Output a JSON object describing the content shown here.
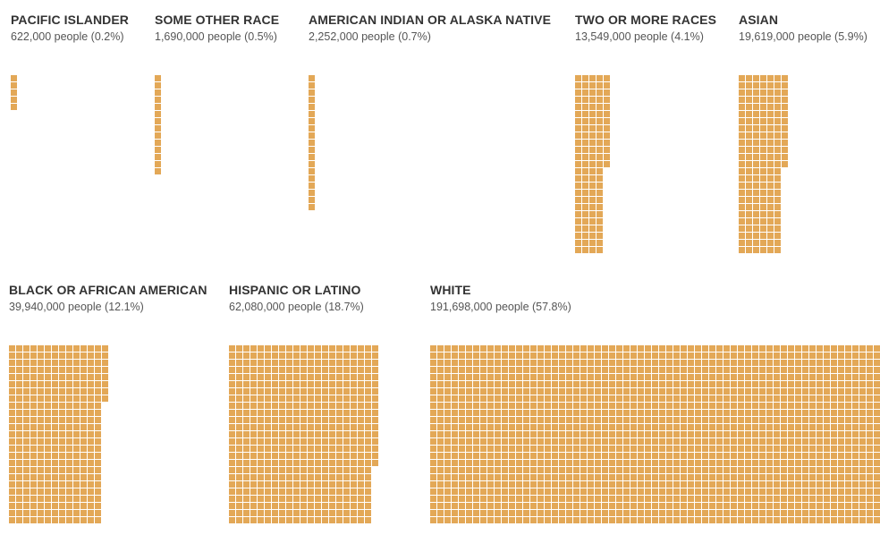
{
  "chart_data": {
    "type": "waffle",
    "title": "",
    "unit_note": "",
    "colors": {
      "cell": "#e3a857",
      "title": "#333333",
      "subtitle": "#555555"
    },
    "series": [
      {
        "key": "pi",
        "name": "PACIFIC ISLANDER",
        "subtitle": "622,000 people (0.2%)",
        "people": 622000,
        "percent": 0.2,
        "cells": 5,
        "columns": 1
      },
      {
        "key": "other",
        "name": "SOME OTHER RACE",
        "subtitle": "1,690,000 people (0.5%)",
        "people": 1690000,
        "percent": 0.5,
        "cells": 14,
        "columns": 1
      },
      {
        "key": "aian",
        "name": "AMERICAN INDIAN OR ALASKA NATIVE",
        "subtitle": "2,252,000 people (0.7%)",
        "people": 2252000,
        "percent": 0.7,
        "cells": 19,
        "columns": 1
      },
      {
        "key": "two",
        "name": "TWO OR MORE RACES",
        "subtitle": "13,549,000 people (4.1%)",
        "people": 13549000,
        "percent": 4.1,
        "cells": 113,
        "columns": 4
      },
      {
        "key": "asian",
        "name": "ASIAN",
        "subtitle": "19,619,000 people (5.9%)",
        "people": 19619000,
        "percent": 5.9,
        "cells": 163,
        "columns": 6
      },
      {
        "key": "black",
        "name": "BLACK OR AFRICAN AMERICAN",
        "subtitle": "39,940,000 people (12.1%)",
        "people": 39940000,
        "percent": 12.1,
        "cells": 333,
        "columns": 11
      },
      {
        "key": "hisp",
        "name": "HISPANIC OR LATINO",
        "subtitle": "62,080,000 people (18.7%)",
        "people": 62080000,
        "percent": 18.7,
        "cells": 517,
        "columns": 17
      },
      {
        "key": "white",
        "name": "WHITE",
        "subtitle": "191,698,000 people (57.8%)",
        "people": 191698000,
        "percent": 57.8,
        "cells": 1597,
        "columns": 52
      }
    ]
  }
}
